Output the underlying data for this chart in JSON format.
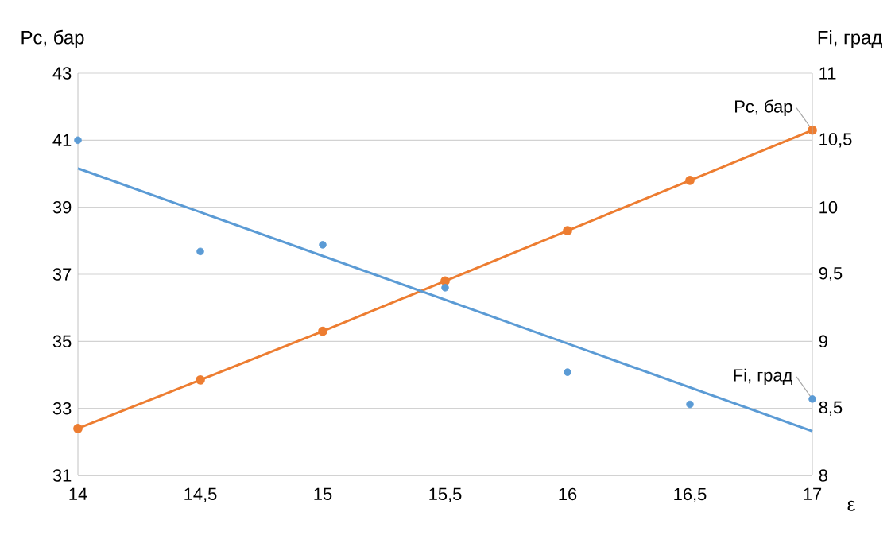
{
  "chart_data": {
    "type": "line",
    "xlabel": "ε",
    "ylabel": "Pc, бар",
    "y2label": "Fi, град",
    "xlim": [
      14,
      17
    ],
    "xticks": [
      14,
      {
        "value": 14.5,
        "label": "14,5"
      },
      15,
      {
        "value": 15.5,
        "label": "15,5"
      },
      16,
      {
        "value": 16.5,
        "label": "16,5"
      },
      17
    ],
    "ylim": [
      31,
      43
    ],
    "yticks": [
      31,
      33,
      35,
      37,
      39,
      41,
      43
    ],
    "y2lim": [
      8,
      11
    ],
    "y2ticks": [
      8,
      {
        "value": 8.5,
        "label": "8,5"
      },
      9,
      {
        "value": 9.5,
        "label": "9,5"
      },
      10,
      {
        "value": 10.5,
        "label": "10,5"
      },
      11
    ],
    "grid": "y",
    "series": [
      {
        "name": "Pc, бар",
        "marker": "circle",
        "color": "#ed7d31",
        "x": [
          14,
          14.5,
          15,
          15.5,
          16,
          16.5,
          17
        ],
        "values": [
          32.4,
          33.85,
          35.3,
          36.8,
          38.3,
          39.8,
          41.3
        ]
      },
      {
        "name": "Fi, град",
        "type": "scatter",
        "marker": "circle",
        "axis": "y2",
        "color": "#5b9bd5",
        "x": [
          14,
          14.5,
          15,
          15.5,
          16,
          16.5,
          17
        ],
        "values": [
          10.5,
          9.67,
          9.72,
          9.4,
          8.77,
          8.53,
          8.57
        ]
      },
      {
        "marker": "none",
        "axis": "y2",
        "color": "#5b9bd5",
        "x": [
          14,
          17
        ],
        "values": [
          10.29,
          8.33
        ]
      }
    ]
  }
}
